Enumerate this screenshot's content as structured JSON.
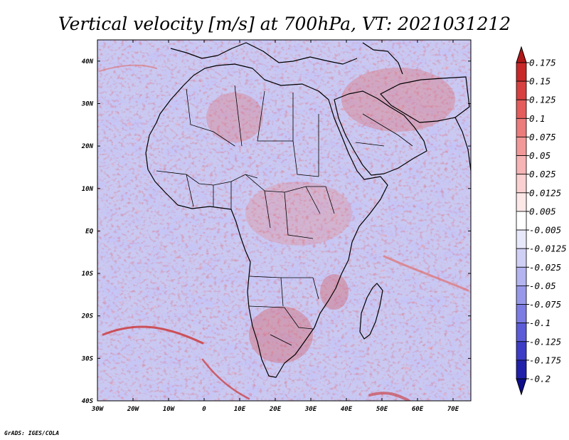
{
  "map": {
    "title": "Vertical velocity [m/s] at 700hPa, VT: 2021031212",
    "variable": "Vertical velocity",
    "units": "m/s",
    "level": "700hPa",
    "valid_time": "2021031212",
    "region": "Africa and Middle East",
    "projection": "Latitude-longitude",
    "lon_range": [
      -30,
      75
    ],
    "lat_range": [
      -40,
      45
    ],
    "lon_ticks": [
      {
        "value": -30,
        "label": "30W"
      },
      {
        "value": -20,
        "label": "20W"
      },
      {
        "value": -10,
        "label": "10W"
      },
      {
        "value": 0,
        "label": "0"
      },
      {
        "value": 10,
        "label": "10E"
      },
      {
        "value": 20,
        "label": "20E"
      },
      {
        "value": 30,
        "label": "30E"
      },
      {
        "value": 40,
        "label": "40E"
      },
      {
        "value": 50,
        "label": "50E"
      },
      {
        "value": 60,
        "label": "60E"
      },
      {
        "value": 70,
        "label": "70E"
      }
    ],
    "lat_ticks": [
      {
        "value": 40,
        "label": "40N"
      },
      {
        "value": 30,
        "label": "30N"
      },
      {
        "value": 20,
        "label": "20N"
      },
      {
        "value": 10,
        "label": "10N"
      },
      {
        "value": 0,
        "label": "EQ"
      },
      {
        "value": -10,
        "label": "10S"
      },
      {
        "value": -20,
        "label": "20S"
      },
      {
        "value": -30,
        "label": "30S"
      },
      {
        "value": -40,
        "label": "40S"
      }
    ]
  },
  "colorbar": {
    "levels": [
      "0.175",
      "0.15",
      "0.125",
      "0.1",
      "0.075",
      "0.05",
      "0.025",
      "0.0125",
      "0.005",
      "-0.005",
      "-0.0125",
      "-0.025",
      "-0.05",
      "-0.075",
      "-0.1",
      "-0.125",
      "-0.175",
      "-0.2"
    ],
    "colors": [
      "#b01818",
      "#c82828",
      "#d84040",
      "#e45c5c",
      "#ec7b7b",
      "#f29898",
      "#f6b4b4",
      "#fad0d0",
      "#fde8e8",
      "#ffffff",
      "#e8e8fb",
      "#d0d0f6",
      "#b4b4f0",
      "#9898ea",
      "#7c7ce2",
      "#5c5cd8",
      "#3c3cc6",
      "#2020aa",
      "#0e0e8a"
    ]
  },
  "credit": "GrADS: IGES/COLA"
}
